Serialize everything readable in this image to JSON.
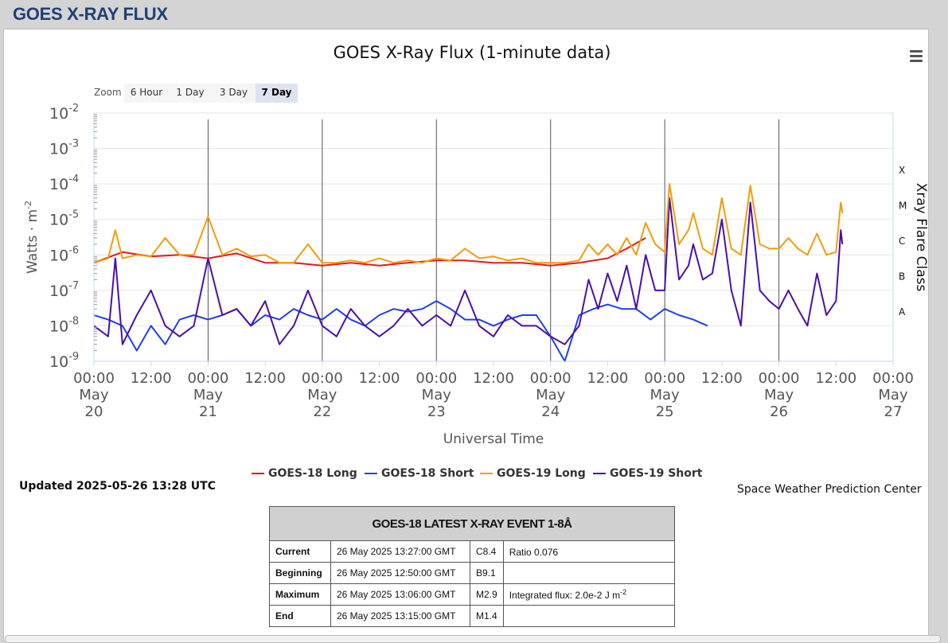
{
  "page": {
    "title": "GOES X-RAY FLUX"
  },
  "zoom": {
    "label": "Zoom",
    "buttons": [
      "6 Hour",
      "1 Day",
      "3 Day",
      "7 Day"
    ],
    "active": "7 Day"
  },
  "chart_data": {
    "type": "line",
    "title": "GOES X-Ray Flux (1-minute data)",
    "xlabel": "Universal Time",
    "ylabel": "Watts · m",
    "ylabel_sup": "-2",
    "y2label": "Xray Flare Class",
    "y_scale": "log",
    "ylim": [
      1e-09,
      0.01
    ],
    "y_ticks": [
      {
        "base": "10",
        "exp": "-2"
      },
      {
        "base": "10",
        "exp": "-3"
      },
      {
        "base": "10",
        "exp": "-4"
      },
      {
        "base": "10",
        "exp": "-5"
      },
      {
        "base": "10",
        "exp": "-6"
      },
      {
        "base": "10",
        "exp": "-7"
      },
      {
        "base": "10",
        "exp": "-8"
      },
      {
        "base": "10",
        "exp": "-9"
      }
    ],
    "flare_classes": [
      "X",
      "M",
      "C",
      "B",
      "A"
    ],
    "xlim": [
      "2025-05-20 00:00",
      "2025-05-27 00:00"
    ],
    "x_ticks": [
      {
        "time": "00:00",
        "month": "May",
        "day": "20"
      },
      {
        "time": "12:00"
      },
      {
        "time": "00:00",
        "month": "May",
        "day": "21"
      },
      {
        "time": "12:00"
      },
      {
        "time": "00:00",
        "month": "May",
        "day": "22"
      },
      {
        "time": "12:00"
      },
      {
        "time": "00:00",
        "month": "May",
        "day": "23"
      },
      {
        "time": "12:00"
      },
      {
        "time": "00:00",
        "month": "May",
        "day": "24"
      },
      {
        "time": "12:00"
      },
      {
        "time": "00:00",
        "month": "May",
        "day": "25"
      },
      {
        "time": "12:00"
      },
      {
        "time": "00:00",
        "month": "May",
        "day": "26"
      },
      {
        "time": "12:00"
      },
      {
        "time": "00:00",
        "month": "May",
        "day": "27"
      }
    ],
    "legend_position": "bottom-center",
    "series": [
      {
        "name": "GOES-18 Long",
        "color": "#e31a1c",
        "x": [
          "05-20 00:00",
          "05-20 06:00",
          "05-20 12:00",
          "05-20 18:00",
          "05-21 00:00",
          "05-21 06:00",
          "05-21 12:00",
          "05-21 18:00",
          "05-22 00:00",
          "05-22 06:00",
          "05-22 12:00",
          "05-22 18:00",
          "05-23 00:00",
          "05-23 06:00",
          "05-23 12:00",
          "05-23 18:00",
          "05-24 00:00",
          "05-24 06:00",
          "05-24 12:00",
          "05-24 16:00",
          "05-24 20:00"
        ],
        "y": [
          6e-07,
          1.2e-06,
          9e-07,
          1e-06,
          8e-07,
          1.1e-06,
          6e-07,
          6e-07,
          5e-07,
          6e-07,
          5e-07,
          6e-07,
          7e-07,
          7e-07,
          6e-07,
          6e-07,
          5e-07,
          6e-07,
          8e-07,
          1.5e-06,
          3e-06
        ]
      },
      {
        "name": "GOES-18 Short",
        "color": "#1f3fe8",
        "x": [
          "05-20 00:00",
          "05-20 03:00",
          "05-20 06:00",
          "05-20 09:00",
          "05-20 12:00",
          "05-20 15:00",
          "05-20 18:00",
          "05-20 21:00",
          "05-21 00:00",
          "05-21 03:00",
          "05-21 06:00",
          "05-21 09:00",
          "05-21 12:00",
          "05-21 15:00",
          "05-21 18:00",
          "05-21 21:00",
          "05-22 00:00",
          "05-22 03:00",
          "05-22 06:00",
          "05-22 09:00",
          "05-22 12:00",
          "05-22 15:00",
          "05-22 18:00",
          "05-22 21:00",
          "05-23 00:00",
          "05-23 03:00",
          "05-23 06:00",
          "05-23 09:00",
          "05-23 12:00",
          "05-23 15:00",
          "05-23 18:00",
          "05-23 21:00",
          "05-24 00:00",
          "05-24 03:00",
          "05-24 06:00",
          "05-24 09:00",
          "05-24 12:00",
          "05-24 15:00",
          "05-24 18:00",
          "05-24 21:00",
          "05-25 00:00",
          "05-25 03:00",
          "05-25 06:00",
          "05-25 09:00"
        ],
        "y": [
          2e-08,
          1.5e-08,
          1e-08,
          2e-09,
          1e-08,
          3e-09,
          1.5e-08,
          2e-08,
          1.5e-08,
          2e-08,
          3e-08,
          1e-08,
          2e-08,
          1.5e-08,
          3e-08,
          2e-08,
          1.5e-08,
          3e-08,
          1.5e-08,
          1e-08,
          2e-08,
          3e-08,
          2.5e-08,
          3e-08,
          5e-08,
          3e-08,
          1.5e-08,
          1.5e-08,
          1e-08,
          1.5e-08,
          2e-08,
          2e-08,
          5e-09,
          1e-09,
          2e-08,
          3e-08,
          4e-08,
          3e-08,
          3e-08,
          1.5e-08,
          3e-08,
          2e-08,
          1.5e-08,
          1e-08
        ]
      },
      {
        "name": "GOES-19 Long",
        "color": "#f59b0a",
        "x": [
          "05-20 00:00",
          "05-20 03:00",
          "05-20 04:30",
          "05-20 06:00",
          "05-20 09:00",
          "05-20 12:00",
          "05-20 15:00",
          "05-20 18:00",
          "05-20 21:00",
          "05-21 00:00",
          "05-21 03:00",
          "05-21 06:00",
          "05-21 09:00",
          "05-21 12:00",
          "05-21 15:00",
          "05-21 18:00",
          "05-21 21:00",
          "05-22 00:00",
          "05-22 03:00",
          "05-22 06:00",
          "05-22 09:00",
          "05-22 12:00",
          "05-22 15:00",
          "05-22 18:00",
          "05-22 21:00",
          "05-23 00:00",
          "05-23 03:00",
          "05-23 06:00",
          "05-23 09:00",
          "05-23 12:00",
          "05-23 15:00",
          "05-23 18:00",
          "05-23 21:00",
          "05-24 00:00",
          "05-24 03:00",
          "05-24 06:00",
          "05-24 08:00",
          "05-24 10:00",
          "05-24 12:00",
          "05-24 14:00",
          "05-24 16:00",
          "05-24 18:00",
          "05-24 20:00",
          "05-24 22:00",
          "05-25 00:00",
          "05-25 01:00",
          "05-25 03:00",
          "05-25 05:00",
          "05-25 06:00",
          "05-25 08:00",
          "05-25 10:00",
          "05-25 12:00",
          "05-25 14:00",
          "05-25 16:00",
          "05-25 18:00",
          "05-25 20:00",
          "05-25 22:00",
          "05-26 00:00",
          "05-26 02:00",
          "05-26 04:00",
          "05-26 06:00",
          "05-26 08:00",
          "05-26 10:00",
          "05-26 12:00",
          "05-26 13:00",
          "05-26 13:20"
        ],
        "y": [
          6e-07,
          8e-07,
          5e-06,
          8e-07,
          1e-06,
          9e-07,
          3e-06,
          1e-06,
          1e-06,
          1.2e-05,
          1e-06,
          1.5e-06,
          9e-07,
          1e-06,
          6e-07,
          6e-07,
          2e-06,
          6e-07,
          6e-07,
          7e-07,
          6e-07,
          8e-07,
          6e-07,
          7e-07,
          6e-07,
          8e-07,
          7e-07,
          1.5e-06,
          8e-07,
          9e-07,
          7e-07,
          8e-07,
          6e-07,
          6e-07,
          6e-07,
          7e-07,
          2e-06,
          1e-06,
          2e-06,
          1e-06,
          3e-06,
          1e-06,
          8e-06,
          2e-06,
          1.2e-06,
          0.0001,
          2e-06,
          5e-06,
          1.5e-05,
          1.5e-06,
          1e-06,
          4e-05,
          1.5e-06,
          1e-06,
          9e-05,
          2e-06,
          1.5e-06,
          1.5e-06,
          3e-06,
          1.5e-06,
          1e-06,
          4e-06,
          1e-06,
          1.2e-06,
          3e-05,
          1.5e-05
        ]
      },
      {
        "name": "GOES-19 Short",
        "color": "#4b0fa8",
        "x": [
          "05-20 00:00",
          "05-20 03:00",
          "05-20 04:30",
          "05-20 06:00",
          "05-20 09:00",
          "05-20 12:00",
          "05-20 15:00",
          "05-20 18:00",
          "05-20 21:00",
          "05-21 00:00",
          "05-21 03:00",
          "05-21 06:00",
          "05-21 09:00",
          "05-21 12:00",
          "05-21 15:00",
          "05-21 18:00",
          "05-21 21:00",
          "05-22 00:00",
          "05-22 03:00",
          "05-22 06:00",
          "05-22 09:00",
          "05-22 12:00",
          "05-22 15:00",
          "05-22 18:00",
          "05-22 21:00",
          "05-23 00:00",
          "05-23 03:00",
          "05-23 06:00",
          "05-23 09:00",
          "05-23 12:00",
          "05-23 15:00",
          "05-23 18:00",
          "05-23 21:00",
          "05-24 00:00",
          "05-24 03:00",
          "05-24 06:00",
          "05-24 08:00",
          "05-24 10:00",
          "05-24 12:00",
          "05-24 14:00",
          "05-24 16:00",
          "05-24 18:00",
          "05-24 20:00",
          "05-24 22:00",
          "05-25 00:00",
          "05-25 01:00",
          "05-25 03:00",
          "05-25 05:00",
          "05-25 06:00",
          "05-25 08:00",
          "05-25 10:00",
          "05-25 12:00",
          "05-25 14:00",
          "05-25 16:00",
          "05-25 18:00",
          "05-25 20:00",
          "05-25 22:00",
          "05-26 00:00",
          "05-26 02:00",
          "05-26 04:00",
          "05-26 06:00",
          "05-26 08:00",
          "05-26 10:00",
          "05-26 12:00",
          "05-26 13:00",
          "05-26 13:20"
        ],
        "y": [
          1e-08,
          5e-09,
          8e-07,
          3e-09,
          2e-08,
          1e-07,
          1e-08,
          5e-09,
          1e-08,
          8e-07,
          2e-08,
          3e-08,
          1e-08,
          5e-08,
          3e-09,
          1e-08,
          1e-07,
          1e-08,
          5e-09,
          3e-08,
          1e-08,
          5e-09,
          1e-08,
          3e-08,
          1e-08,
          2e-08,
          1e-08,
          1e-07,
          1e-08,
          5e-09,
          2e-08,
          1e-08,
          1e-08,
          5e-09,
          3e-09,
          1e-08,
          2e-07,
          3e-08,
          3e-07,
          5e-08,
          5e-07,
          3e-08,
          1e-06,
          1e-07,
          1e-07,
          4e-05,
          2e-07,
          5e-07,
          2e-06,
          2e-07,
          3e-07,
          1e-05,
          1e-07,
          1e-08,
          3e-05,
          1e-07,
          5e-08,
          3e-08,
          1e-07,
          3e-08,
          1e-08,
          3e-07,
          2e-08,
          5e-08,
          5e-06,
          2e-06
        ]
      }
    ]
  },
  "updated": "Updated 2025-05-26 13:28 UTC",
  "credit": "Space Weather Prediction Center",
  "event_table": {
    "title": "GOES-18 LATEST X-RAY EVENT 1-8Å",
    "rows": [
      {
        "label": "Current",
        "time": "26 May 2025 13:27:00 GMT",
        "class": "C8.4",
        "note": "Ratio 0.076",
        "note_sup": ""
      },
      {
        "label": "Beginning",
        "time": "26 May 2025 12:50:00 GMT",
        "class": "B9.1",
        "note": "",
        "note_sup": ""
      },
      {
        "label": "Maximum",
        "time": "26 May 2025 13:06:00 GMT",
        "class": "M2.9",
        "note": "Integrated flux: 2.0e-2 J m",
        "note_sup": "-2"
      },
      {
        "label": "End",
        "time": "26 May 2025 13:15:00 GMT",
        "class": "M1.4",
        "note": "",
        "note_sup": ""
      }
    ]
  }
}
